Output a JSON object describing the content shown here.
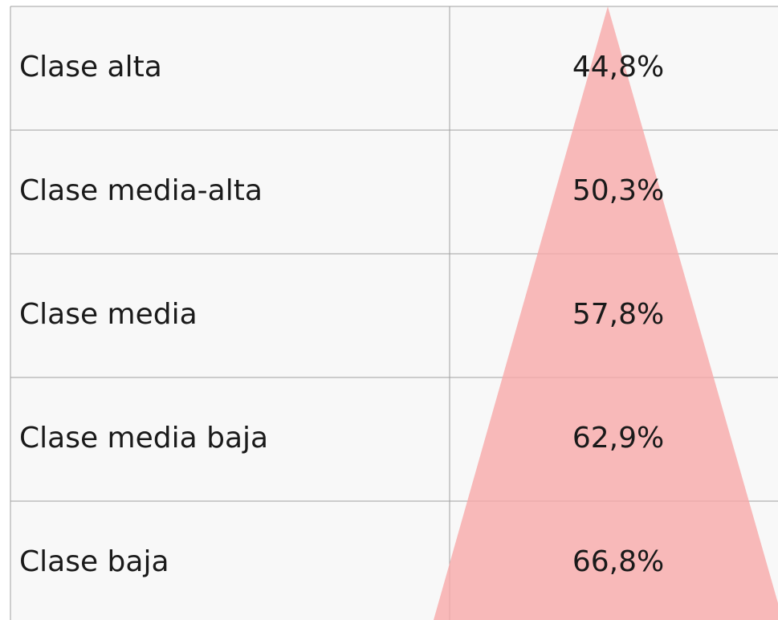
{
  "table": {
    "rows": [
      [
        "Clase alta",
        "44,8%"
      ],
      [
        "Clase media-alta",
        "50,3%"
      ],
      [
        "Clase media",
        "57,8%"
      ],
      [
        "Clase media baja",
        "62,9%"
      ],
      [
        "Clase baja",
        "66,8%"
      ]
    ]
  }
}
